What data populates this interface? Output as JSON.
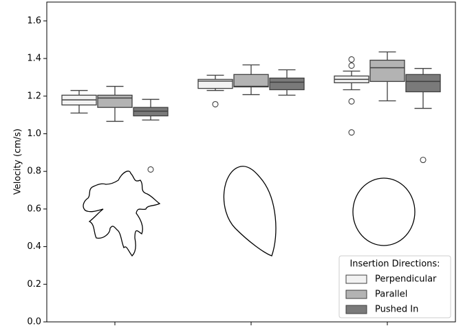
{
  "chart_data": {
    "type": "box",
    "y_label": "Velocity (cm/s)",
    "categories": [
      null,
      null,
      null
    ],
    "ylim": [
      0,
      1.7
    ],
    "yticks": [
      {
        "value": 0,
        "label": "0.0"
      },
      0.2,
      0.4,
      0.6,
      0.8,
      {
        "value": 1,
        "label": "1.0"
      },
      1.2,
      1.4,
      1.6
    ],
    "legend_title": "Insertion Directions:",
    "legend_position": "lower right",
    "series": [
      {
        "name": "Perpendicular",
        "color": "#f2f2f2",
        "boxes": [
          {
            "whislo": 1.11,
            "q1": 1.153,
            "med": 1.18,
            "q3": 1.205,
            "whishi": 1.23,
            "fliers": []
          },
          {
            "whislo": 1.23,
            "q1": 1.241,
            "med": 1.28,
            "q3": 1.289,
            "whishi": 1.311,
            "fliers": [
              1.157
            ]
          },
          {
            "whislo": 1.234,
            "q1": 1.271,
            "med": 1.289,
            "q3": 1.307,
            "whishi": 1.333,
            "fliers": [
              1.395,
              1.362,
              1.172,
              1.007
            ]
          }
        ]
      },
      {
        "name": "Parallel",
        "color": "#b3b3b3",
        "boxes": [
          {
            "whislo": 1.066,
            "q1": 1.14,
            "med": 1.19,
            "q3": 1.205,
            "whishi": 1.252,
            "fliers": []
          },
          {
            "whislo": 1.208,
            "q1": 1.249,
            "med": 1.252,
            "q3": 1.315,
            "whishi": 1.366,
            "fliers": []
          },
          {
            "whislo": 1.175,
            "q1": 1.278,
            "med": 1.351,
            "q3": 1.391,
            "whishi": 1.435,
            "fliers": []
          }
        ]
      },
      {
        "name": "Pushed In",
        "color": "#7a7a7a",
        "boxes": [
          {
            "whislo": 1.073,
            "q1": 1.095,
            "med": 1.12,
            "q3": 1.14,
            "whishi": 1.183,
            "fliers": [
              0.81
            ]
          },
          {
            "whislo": 1.205,
            "q1": 1.234,
            "med": 1.274,
            "q3": 1.296,
            "whishi": 1.34,
            "fliers": []
          },
          {
            "whislo": 1.135,
            "q1": 1.223,
            "med": 1.278,
            "q3": 1.315,
            "whishi": 1.347,
            "fliers": [
              0.861
            ]
          }
        ]
      }
    ]
  }
}
